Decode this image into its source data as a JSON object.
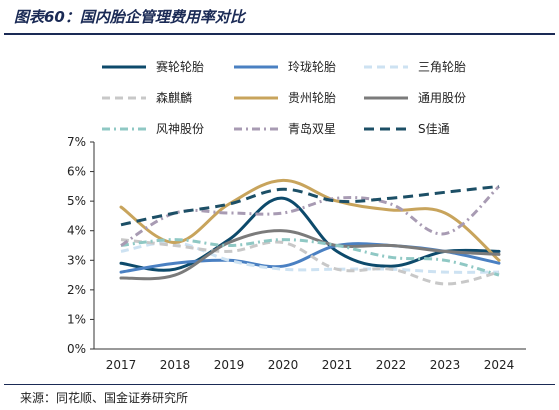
{
  "title": "图表60：国内胎企管理费用率对比",
  "source": "来源：同花顺、国金证券研究所",
  "chart_data": {
    "type": "line",
    "categories": [
      "2017",
      "2018",
      "2019",
      "2020",
      "2021",
      "2022",
      "2023",
      "2024"
    ],
    "ylim": [
      0,
      7
    ],
    "y_ticks": [
      "0%",
      "1%",
      "2%",
      "3%",
      "4%",
      "5%",
      "6%",
      "7%"
    ],
    "grid": false,
    "legend_position": "top",
    "series": [
      {
        "name": "赛轮轮胎",
        "color": "#0d4a6b",
        "dash": "solid",
        "values": [
          2.9,
          2.7,
          3.7,
          5.1,
          3.3,
          2.8,
          3.3,
          3.3
        ]
      },
      {
        "name": "玲珑轮胎",
        "color": "#4a80c2",
        "dash": "solid",
        "values": [
          2.6,
          2.9,
          3.0,
          2.8,
          3.5,
          3.5,
          3.3,
          2.9
        ]
      },
      {
        "name": "三角轮胎",
        "color": "#cde2f2",
        "dash": "dash",
        "values": [
          3.3,
          3.6,
          3.0,
          2.7,
          2.7,
          2.7,
          2.6,
          2.6
        ]
      },
      {
        "name": "森麒麟",
        "color": "#c8c8c8",
        "dash": "dash",
        "values": [
          3.7,
          3.5,
          3.3,
          3.6,
          2.7,
          2.7,
          2.2,
          2.6
        ]
      },
      {
        "name": "贵州轮胎",
        "color": "#c8a45c",
        "dash": "solid",
        "values": [
          4.8,
          3.6,
          4.9,
          5.7,
          5.0,
          4.7,
          4.6,
          3.0
        ]
      },
      {
        "name": "通用股份",
        "color": "#7b7b7b",
        "dash": "solid",
        "values": [
          2.4,
          2.5,
          3.6,
          4.0,
          3.5,
          3.5,
          3.3,
          3.2
        ]
      },
      {
        "name": "风神股份",
        "color": "#8fc8c4",
        "dash": "dashdot",
        "values": [
          3.5,
          3.7,
          3.5,
          3.7,
          3.5,
          3.1,
          3.0,
          2.5
        ]
      },
      {
        "name": "青岛双星",
        "color": "#a89bb3",
        "dash": "dashdot",
        "values": [
          3.5,
          4.6,
          4.6,
          4.6,
          5.1,
          4.9,
          3.9,
          5.5
        ]
      },
      {
        "name": "S佳通",
        "color": "#1c4f66",
        "dash": "bigdash",
        "values": [
          4.2,
          4.6,
          4.9,
          5.4,
          5.0,
          5.1,
          5.3,
          5.5
        ]
      }
    ]
  }
}
